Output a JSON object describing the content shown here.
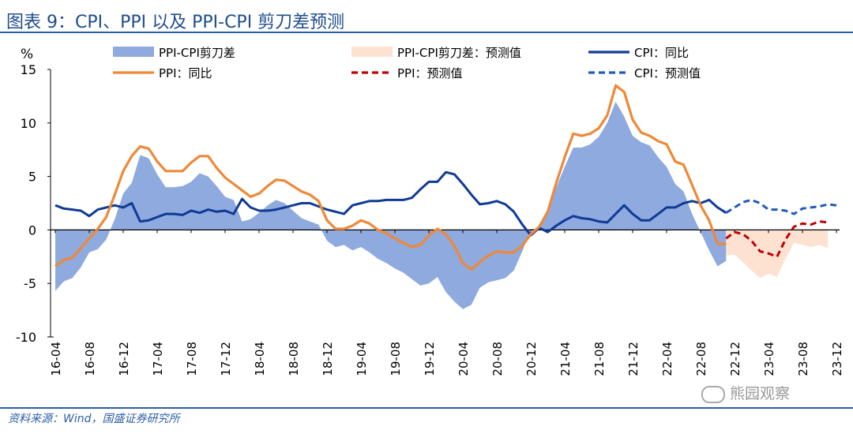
{
  "title": "图表 9：CPI、PPI 以及 PPI-CPI 剪刀差预测",
  "source": "资料来源：Wind，国盛证券研究所",
  "watermark": "熊园观察",
  "colors": {
    "gap_fill": "#8eaade",
    "gap_forecast_fill": "#fde2d2",
    "ppi": "#ef8838",
    "ppi_forecast": "#c00000",
    "cpi": "#0f3a96",
    "cpi_forecast": "#1f5bb8",
    "axis": "#000000",
    "title": "#1f4e8c"
  },
  "chart_data": {
    "type": "line",
    "ylabel": "%",
    "ylim": [
      -10,
      15
    ],
    "yticks": [
      "15",
      "10",
      "5",
      "0",
      "-5",
      "-10"
    ],
    "ytick_values": [
      15,
      10,
      5,
      0,
      -5,
      -10
    ],
    "xtick_labels": [
      "16-04",
      "16-08",
      "16-12",
      "17-04",
      "17-08",
      "17-12",
      "18-04",
      "18-08",
      "18-12",
      "19-04",
      "19-08",
      "19-12",
      "20-04",
      "20-08",
      "20-12",
      "21-04",
      "21-08",
      "21-12",
      "22-04",
      "22-08",
      "22-12",
      "23-04",
      "23-08",
      "23-12"
    ],
    "legend": [
      {
        "key": "gap",
        "label": "PPI-CPI剪刀差",
        "style": "area"
      },
      {
        "key": "gap_forecast",
        "label": "PPI-CPI剪刀差：预测值",
        "style": "area-light"
      },
      {
        "key": "cpi",
        "label": "CPI：同比",
        "style": "solid"
      },
      {
        "key": "ppi",
        "label": "PPI：同比",
        "style": "solid"
      },
      {
        "key": "ppi_forecast",
        "label": "PPI：预测值",
        "style": "dashed"
      },
      {
        "key": "cpi_forecast",
        "label": "CPI：预测值",
        "style": "dashed"
      }
    ],
    "start_month": "2016-04",
    "series": [
      {
        "name": "PPI：同比",
        "key": "ppi",
        "values": [
          -3.4,
          -2.8,
          -2.6,
          -1.7,
          -0.8,
          0.1,
          1.2,
          3.3,
          5.5,
          6.9,
          7.8,
          7.6,
          6.4,
          5.5,
          5.5,
          5.5,
          6.3,
          6.9,
          6.9,
          5.8,
          4.9,
          4.3,
          3.7,
          3.1,
          3.4,
          4.1,
          4.7,
          4.6,
          4.1,
          3.6,
          3.3,
          2.7,
          0.9,
          0.1,
          0.1,
          0.4,
          0.9,
          0.6,
          0.0,
          -0.3,
          -0.8,
          -1.2,
          -1.6,
          -1.4,
          -0.5,
          0.1,
          -0.4,
          -1.5,
          -3.1,
          -3.7,
          -3.0,
          -2.4,
          -2.0,
          -2.1,
          -2.1,
          -1.5,
          -0.4,
          0.3,
          1.7,
          4.4,
          6.8,
          9.0,
          8.8,
          9.0,
          9.5,
          10.7,
          13.5,
          12.9,
          10.3,
          9.1,
          8.8,
          8.3,
          8.0,
          6.4,
          6.1,
          4.2,
          2.3,
          0.9,
          -1.3,
          -1.3
        ],
        "forecast_key": "ppi_forecast",
        "forecast_values": [
          -0.8,
          -0.2,
          -0.4,
          -1.0,
          -2.0,
          -2.2,
          -2.5,
          -0.9,
          0.3,
          0.6,
          0.5,
          0.8,
          0.7
        ]
      },
      {
        "name": "CPI：同比",
        "key": "cpi",
        "values": [
          2.3,
          2.0,
          1.9,
          1.8,
          1.3,
          1.9,
          2.1,
          2.3,
          2.1,
          2.5,
          0.8,
          0.9,
          1.2,
          1.5,
          1.5,
          1.4,
          1.8,
          1.6,
          1.9,
          1.7,
          1.8,
          1.5,
          2.9,
          2.1,
          1.8,
          1.8,
          1.9,
          2.1,
          2.3,
          2.5,
          2.5,
          2.2,
          1.9,
          1.7,
          1.5,
          2.3,
          2.5,
          2.7,
          2.7,
          2.8,
          2.8,
          2.8,
          3.0,
          3.8,
          4.5,
          4.5,
          5.4,
          5.2,
          4.3,
          3.3,
          2.4,
          2.5,
          2.7,
          2.4,
          1.7,
          0.5,
          -0.5,
          0.2,
          -0.2,
          0.4,
          0.9,
          1.3,
          1.1,
          1.0,
          0.8,
          0.7,
          1.5,
          2.3,
          1.5,
          0.9,
          0.9,
          1.5,
          2.1,
          2.1,
          2.5,
          2.7,
          2.5,
          2.8,
          2.1,
          1.6
        ],
        "forecast_key": "cpi_forecast",
        "forecast_values": [
          1.6,
          2.1,
          2.6,
          2.8,
          2.5,
          1.9,
          1.9,
          1.8,
          1.5,
          2.0,
          2.1,
          2.2,
          2.4,
          2.3
        ]
      }
    ]
  }
}
